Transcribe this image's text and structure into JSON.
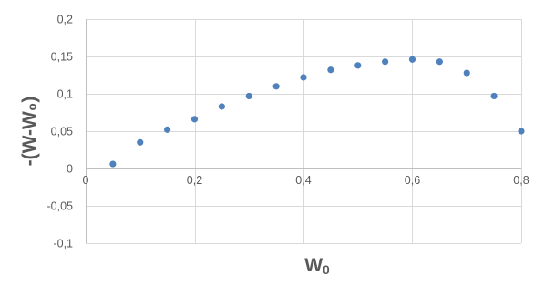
{
  "chart_data": {
    "type": "scatter",
    "title": "",
    "xlabel": "W",
    "xlabel_subscript": "0",
    "ylabel": "-(W-W₀)",
    "xlim": [
      0,
      0.8
    ],
    "ylim": [
      -0.1,
      0.2
    ],
    "grid": true,
    "legend": "none",
    "marker_color": "#4f81bd",
    "x_ticks": [
      {
        "value": 0,
        "label": "0"
      },
      {
        "value": 0.2,
        "label": "0,2"
      },
      {
        "value": 0.4,
        "label": "0,4"
      },
      {
        "value": 0.6,
        "label": "0,6"
      },
      {
        "value": 0.8,
        "label": "0,8"
      }
    ],
    "y_ticks": [
      {
        "value": -0.1,
        "label": "-0,1"
      },
      {
        "value": -0.05,
        "label": "-0,05"
      },
      {
        "value": 0,
        "label": "0"
      },
      {
        "value": 0.05,
        "label": "0,05"
      },
      {
        "value": 0.1,
        "label": "0,1"
      },
      {
        "value": 0.15,
        "label": "0,15"
      },
      {
        "value": 0.2,
        "label": "0,2"
      }
    ],
    "series": [
      {
        "x": [
          0.05,
          0.1,
          0.15,
          0.2,
          0.25,
          0.3,
          0.35,
          0.4,
          0.45,
          0.5,
          0.55,
          0.6,
          0.65,
          0.7,
          0.75,
          0.8
        ],
        "y": [
          0.006,
          0.035,
          0.052,
          0.066,
          0.083,
          0.097,
          0.11,
          0.122,
          0.132,
          0.138,
          0.143,
          0.146,
          0.143,
          0.128,
          0.097,
          0.05
        ]
      }
    ]
  }
}
